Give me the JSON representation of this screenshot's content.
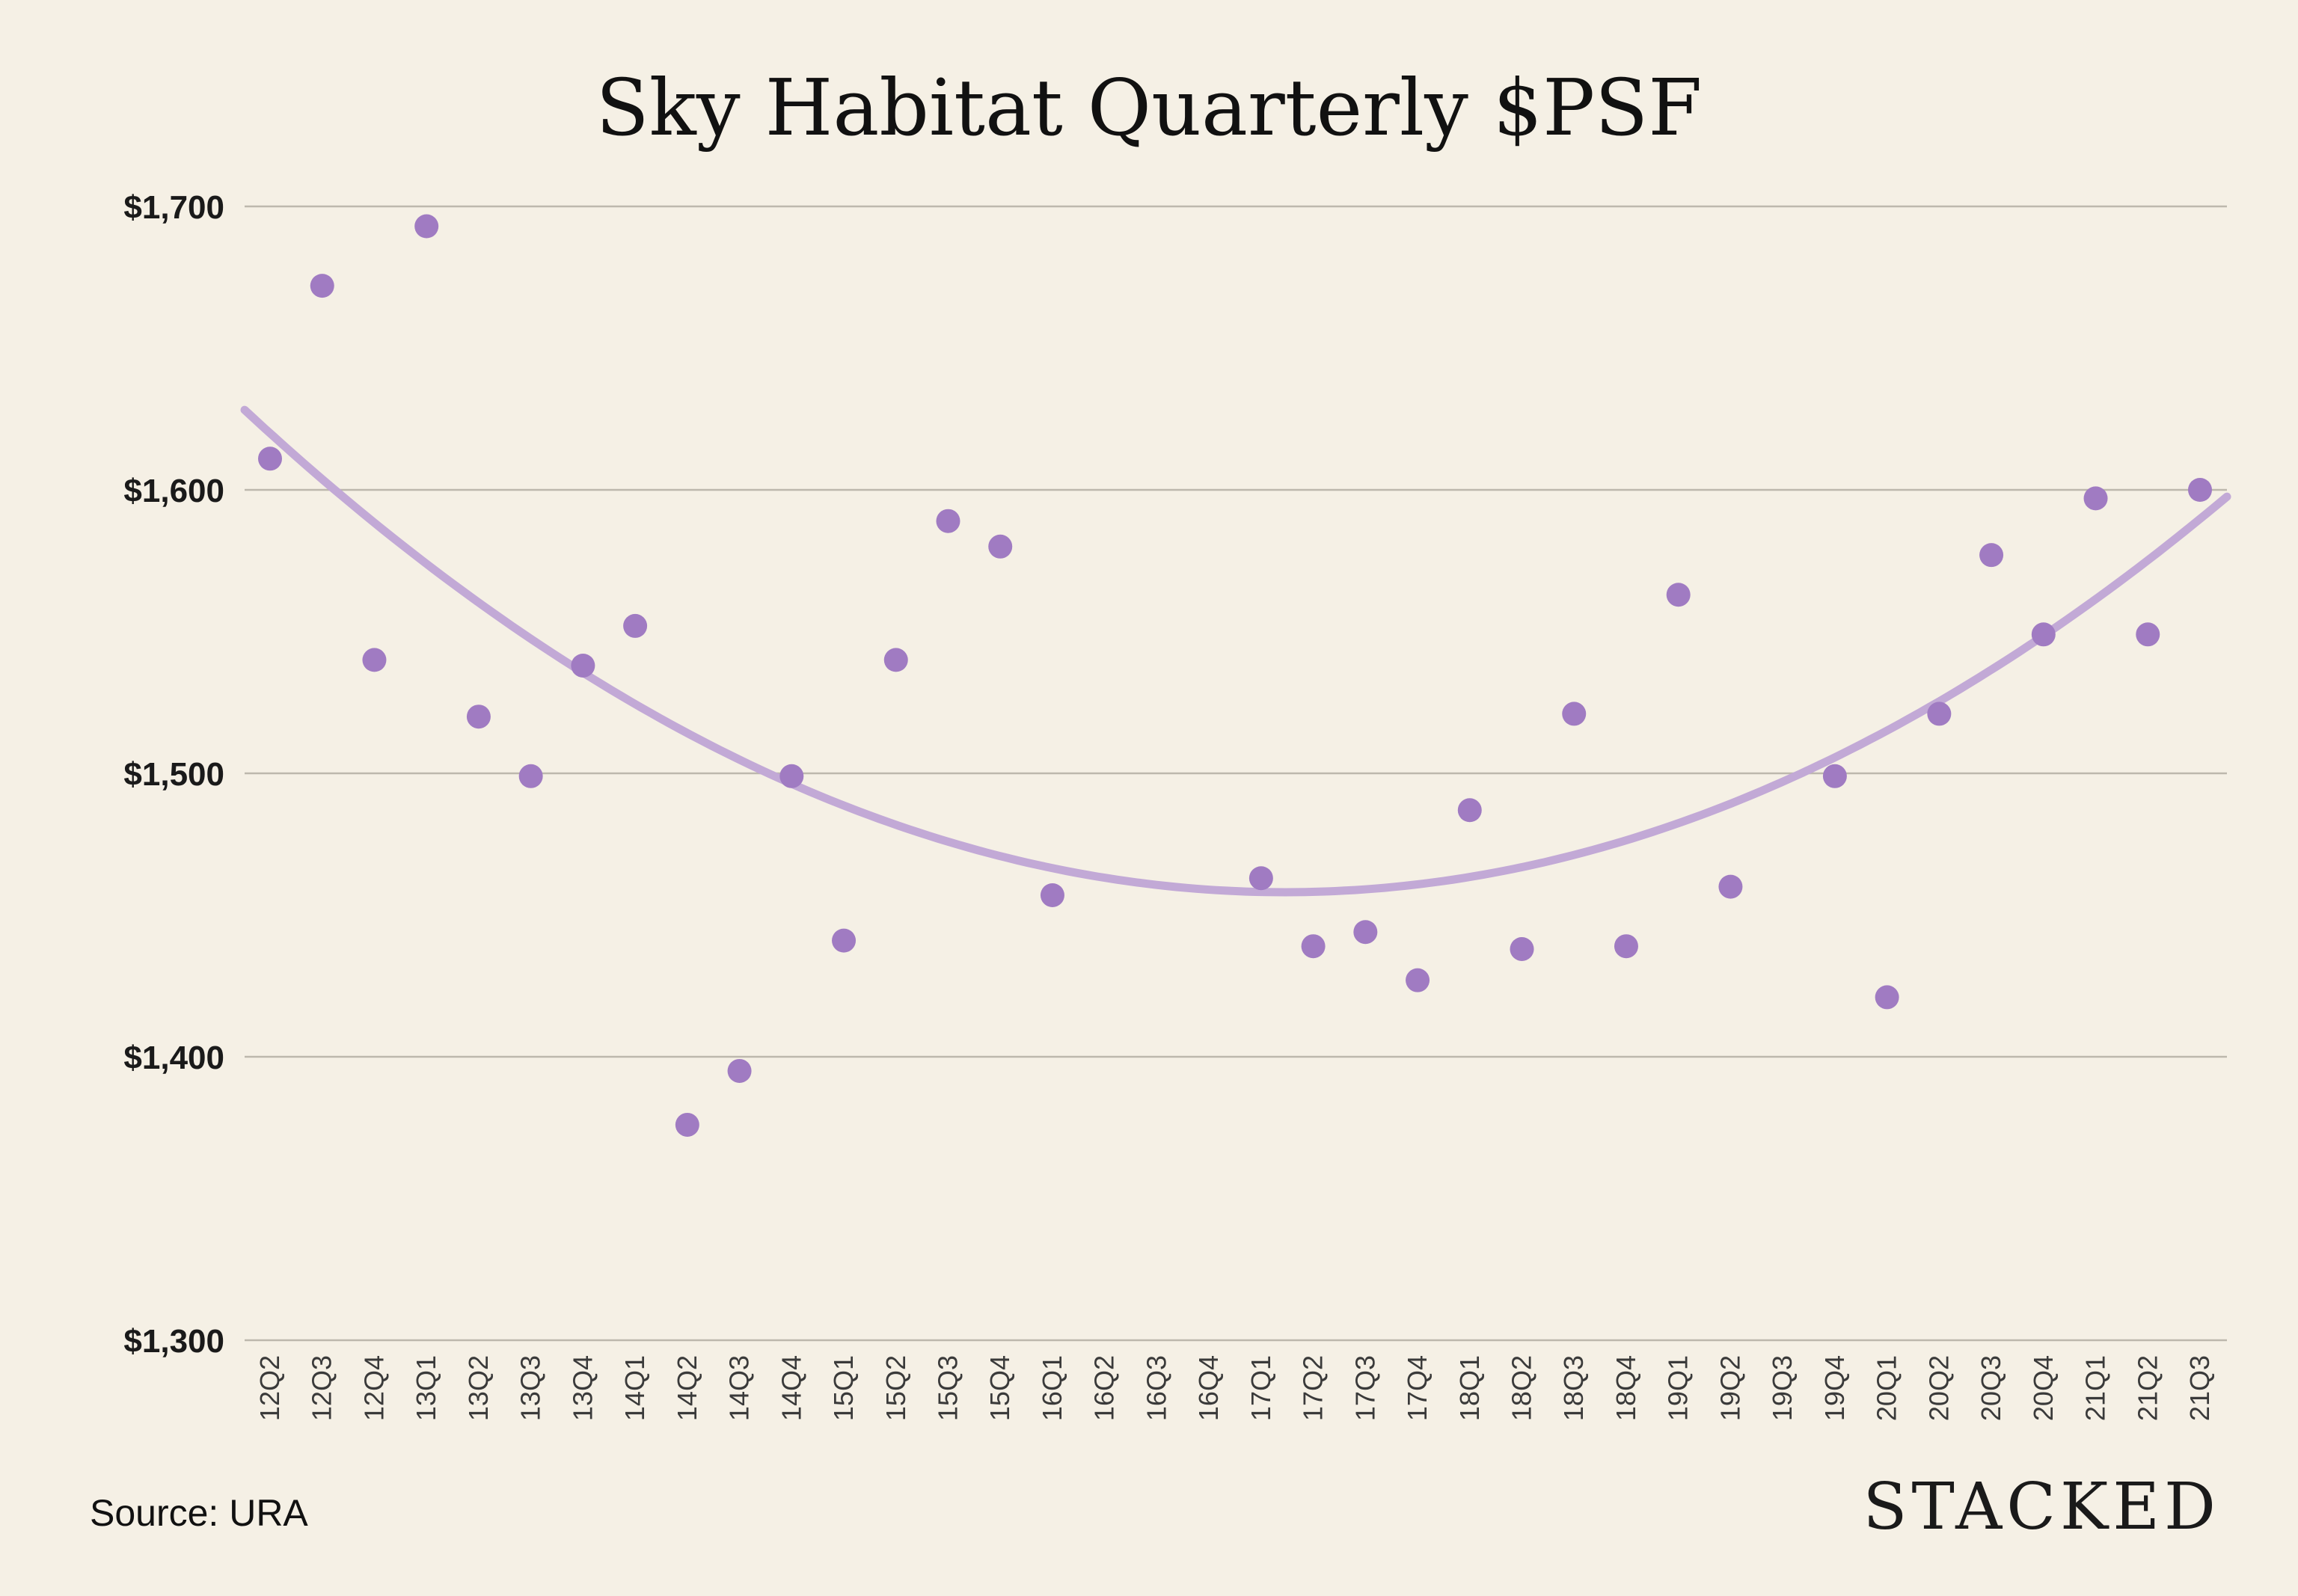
{
  "chart_data": {
    "type": "scatter",
    "title": "Sky Habitat Quarterly $PSF",
    "xlabel": "",
    "ylabel": "",
    "ylim": [
      1300,
      1700
    ],
    "yticks": [
      1300,
      1400,
      1500,
      1600,
      1700
    ],
    "ytick_labels": [
      "$1,300",
      "$1,400",
      "$1,500",
      "$1,600",
      "$1,700"
    ],
    "categories": [
      "12Q2",
      "12Q3",
      "12Q4",
      "13Q1",
      "13Q2",
      "13Q3",
      "13Q4",
      "14Q1",
      "14Q2",
      "14Q3",
      "14Q4",
      "15Q1",
      "15Q2",
      "15Q3",
      "15Q4",
      "16Q1",
      "16Q2",
      "16Q3",
      "16Q4",
      "17Q1",
      "17Q2",
      "17Q3",
      "17Q4",
      "18Q1",
      "18Q2",
      "18Q3",
      "18Q4",
      "19Q1",
      "19Q2",
      "19Q3",
      "19Q4",
      "20Q1",
      "20Q2",
      "20Q3",
      "20Q4",
      "21Q1",
      "21Q2",
      "21Q3"
    ],
    "series": [
      {
        "values": [
          1611,
          1672,
          1540,
          1693,
          1520,
          1499,
          1538,
          1552,
          1376,
          1395,
          1499,
          1441,
          1540,
          1589,
          1580,
          1457,
          null,
          null,
          null,
          1463,
          1439,
          1444,
          1427,
          1487,
          1438,
          1521,
          1439,
          1563,
          1460,
          null,
          1499,
          1421,
          1521,
          1577,
          1549,
          1597,
          1549,
          1600
        ],
        "color": "#a07bc2"
      }
    ],
    "trendline": {
      "type": "polynomial",
      "color": "#c2a9d6"
    },
    "grid": true,
    "legend": "none"
  },
  "footer": {
    "source": "Source: URA",
    "brand": "STACKED"
  }
}
